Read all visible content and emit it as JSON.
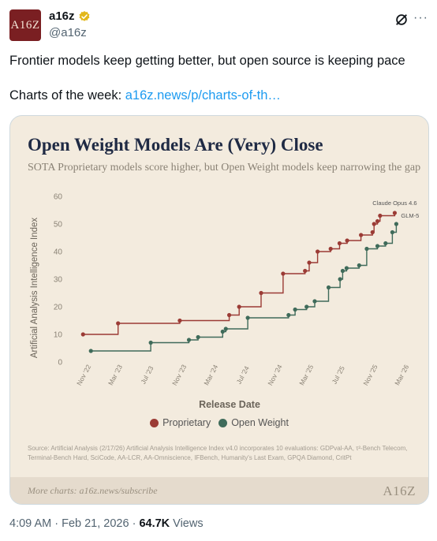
{
  "author": {
    "avatar_text": "A16Z",
    "display_name": "a16z",
    "handle": "@a16z"
  },
  "icons": {
    "verified": "verified-badge-icon",
    "grok": "grok-icon",
    "more": "more-icon"
  },
  "tweet": {
    "line1": "Frontier models keep getting better, but open source is keeping pace",
    "line2_prefix": "Charts of the week: ",
    "link_text": "a16z.news/p/charts-of-th…"
  },
  "card": {
    "footer_text": "More charts: a16z.news/subscribe",
    "footer_logo": "A16Z",
    "source_text": "Source: Artificial Analysis (2/17/26) Artificial Analysis Intelligence Index v4.0 incorporates 10 evaluations: GDPval-AA, τ²-Bench Telecom, Terminal-Bench Hard, SciCode, AA-LCR, AA-Omniscience, IFBench, Humanity's Last Exam, GPQA Diamond, CritPt"
  },
  "colors": {
    "proprietary": "#9b3b35",
    "open_weight": "#3f6b5a",
    "card_bg": "#f3ebde",
    "title": "#1f2a44"
  },
  "meta": {
    "time": "4:09 AM · Feb 21, 2026 · ",
    "views_count": "64.7K",
    "views_label": " Views"
  },
  "chart_data": {
    "type": "line",
    "title": "Open Weight Models Are (Very) Close",
    "subtitle": "SOTA Proprietary models score higher, but Open Weight models keep narrowing the gap",
    "xlabel": "Release Date",
    "ylabel": "Artificial Analysis Intelligence Index",
    "ylim": [
      0,
      60
    ],
    "yticks": [
      0,
      10,
      20,
      30,
      40,
      50,
      60
    ],
    "xlim": [
      "2022-10-01",
      "2026-03-15"
    ],
    "xticks": [
      "Nov '22",
      "Mar '23",
      "Jul '23",
      "Nov '23",
      "Mar '24",
      "Jul '24",
      "Nov '24",
      "Mar '25",
      "Jul '25",
      "Nov '25",
      "Mar '26"
    ],
    "xtick_dates": [
      "2022-11-01",
      "2023-03-01",
      "2023-07-01",
      "2023-11-01",
      "2024-03-01",
      "2024-07-01",
      "2024-11-01",
      "2025-03-01",
      "2025-07-01",
      "2025-11-01",
      "2026-03-01"
    ],
    "step": true,
    "grid": false,
    "legend_position": "bottom",
    "series": [
      {
        "name": "Proprietary",
        "color": "#9b3b35",
        "points": [
          [
            "2022-11-01",
            10
          ],
          [
            "2023-03-15",
            14
          ],
          [
            "2023-11-06",
            15
          ],
          [
            "2024-05-13",
            17
          ],
          [
            "2024-06-20",
            20
          ],
          [
            "2024-09-12",
            25
          ],
          [
            "2024-12-05",
            32
          ],
          [
            "2025-02-27",
            33
          ],
          [
            "2025-03-15",
            36
          ],
          [
            "2025-04-16",
            40
          ],
          [
            "2025-06-05",
            41
          ],
          [
            "2025-07-09",
            43
          ],
          [
            "2025-08-07",
            44
          ],
          [
            "2025-09-29",
            46
          ],
          [
            "2025-11-12",
            47
          ],
          [
            "2025-11-18",
            50
          ],
          [
            "2025-12-01",
            51
          ],
          [
            "2025-12-11",
            53
          ],
          [
            "2026-02-05",
            54
          ]
        ],
        "annotation": "Claude Opus 4.6"
      },
      {
        "name": "Open Weight",
        "color": "#3f6b5a",
        "points": [
          [
            "2022-12-01",
            4
          ],
          [
            "2023-07-18",
            7
          ],
          [
            "2023-12-11",
            8
          ],
          [
            "2024-01-15",
            9
          ],
          [
            "2024-04-18",
            11
          ],
          [
            "2024-04-30",
            12
          ],
          [
            "2024-07-23",
            16
          ],
          [
            "2024-12-26",
            17
          ],
          [
            "2025-01-20",
            19
          ],
          [
            "2025-03-05",
            20
          ],
          [
            "2025-04-05",
            22
          ],
          [
            "2025-05-28",
            27
          ],
          [
            "2025-07-11",
            30
          ],
          [
            "2025-07-21",
            33
          ],
          [
            "2025-08-05",
            34
          ],
          [
            "2025-09-22",
            35
          ],
          [
            "2025-10-21",
            41
          ],
          [
            "2025-12-01",
            42
          ],
          [
            "2026-01-01",
            43
          ],
          [
            "2026-01-27",
            47
          ],
          [
            "2026-02-11",
            50
          ]
        ],
        "annotation": "GLM-5"
      }
    ]
  }
}
